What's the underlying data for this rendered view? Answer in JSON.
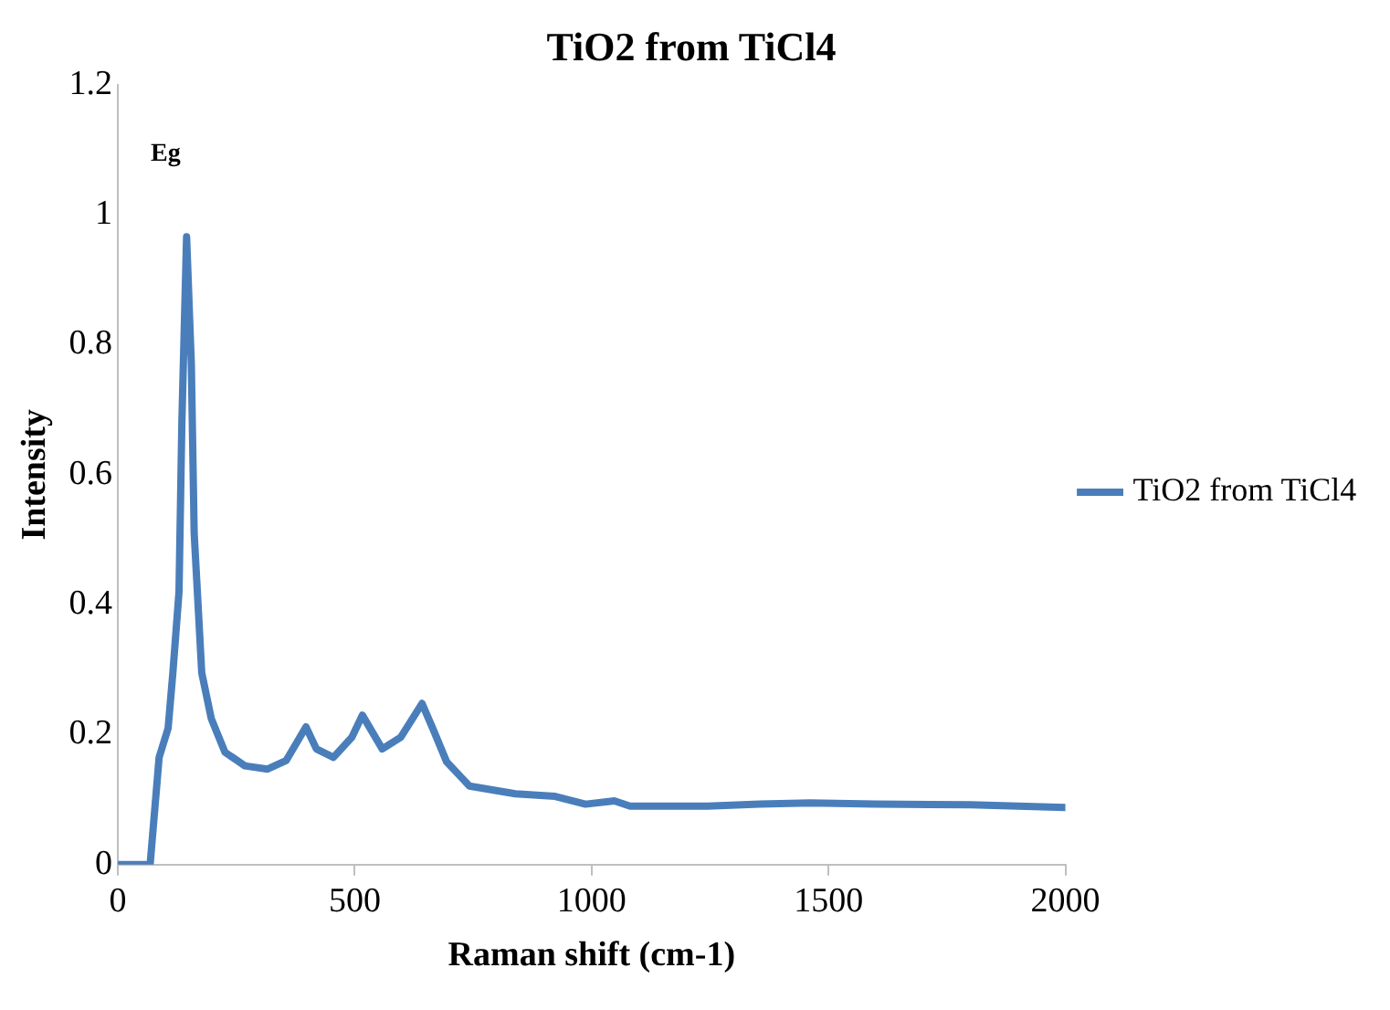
{
  "chart_data": {
    "type": "line",
    "title": "TiO2 from TiCl4",
    "xlabel": "Raman shift (cm-1)",
    "ylabel": "Intensity",
    "xlim": [
      0,
      2000
    ],
    "xticks": [
      0,
      500,
      1000,
      1500,
      2000
    ],
    "ylim": [
      0,
      1.2
    ],
    "yticks": [
      0,
      0.2,
      0.4,
      0.6,
      0.8,
      1,
      1.2
    ],
    "grid": false,
    "legend": "right",
    "marker": "none",
    "line_style": "solid",
    "annotations": [
      "Eg"
    ],
    "series": [
      {
        "name": "TiO2 from TiCl4",
        "color": "#4a7ebb",
        "x": [
          0,
          68,
          87,
          106,
          116,
          129,
          135,
          145,
          155,
          161,
          177,
          197,
          226,
          268,
          316,
          355,
          397,
          419,
          455,
          494,
          516,
          558,
          597,
          642,
          665,
          694,
          742,
          839,
          923,
          987,
          1048,
          1081,
          1245,
          1355,
          1461,
          1600,
          1800,
          2000
        ],
        "values": [
          0,
          0,
          0.165,
          0.21,
          0.295,
          0.42,
          0.68,
          0.966,
          0.77,
          0.51,
          0.295,
          0.225,
          0.173,
          0.152,
          0.147,
          0.16,
          0.212,
          0.178,
          0.165,
          0.196,
          0.23,
          0.178,
          0.196,
          0.248,
          0.209,
          0.158,
          0.121,
          0.109,
          0.105,
          0.093,
          0.098,
          0.09,
          0.09,
          0.093,
          0.095,
          0.093,
          0.092,
          0.088
        ]
      }
    ]
  }
}
